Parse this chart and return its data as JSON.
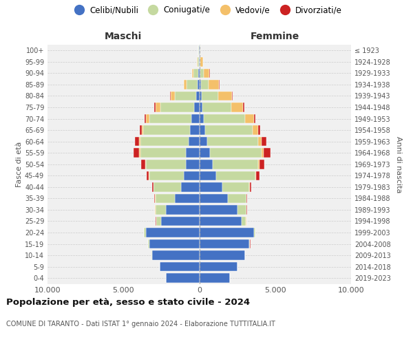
{
  "age_groups": [
    "0-4",
    "5-9",
    "10-14",
    "15-19",
    "20-24",
    "25-29",
    "30-34",
    "35-39",
    "40-44",
    "45-49",
    "50-54",
    "55-59",
    "60-64",
    "65-69",
    "70-74",
    "75-79",
    "80-84",
    "85-89",
    "90-94",
    "95-99",
    "100+"
  ],
  "birth_years": [
    "2019-2023",
    "2014-2018",
    "2009-2013",
    "2004-2008",
    "1999-2003",
    "1994-1998",
    "1989-1993",
    "1984-1988",
    "1979-1983",
    "1974-1978",
    "1969-1973",
    "1964-1968",
    "1959-1963",
    "1954-1958",
    "1949-1953",
    "1944-1948",
    "1939-1943",
    "1934-1938",
    "1929-1933",
    "1924-1928",
    "≤ 1923"
  ],
  "male": {
    "celibi": [
      2200,
      2600,
      3100,
      3300,
      3500,
      2500,
      2200,
      1600,
      1200,
      1000,
      900,
      900,
      700,
      600,
      500,
      350,
      200,
      120,
      80,
      30,
      20
    ],
    "coniugati": [
      10,
      20,
      40,
      80,
      150,
      350,
      700,
      1300,
      1800,
      2300,
      2600,
      3000,
      3200,
      3100,
      2800,
      2200,
      1400,
      700,
      300,
      80,
      30
    ],
    "vedovi": [
      5,
      5,
      5,
      5,
      5,
      5,
      10,
      15,
      20,
      30,
      40,
      60,
      80,
      100,
      200,
      350,
      300,
      200,
      100,
      30,
      10
    ],
    "divorziati": [
      5,
      5,
      5,
      5,
      10,
      20,
      30,
      50,
      80,
      150,
      300,
      350,
      250,
      120,
      100,
      80,
      30,
      15,
      10,
      10,
      5
    ]
  },
  "female": {
    "nubili": [
      2000,
      2500,
      3000,
      3300,
      3600,
      2800,
      2500,
      1900,
      1500,
      1100,
      900,
      700,
      500,
      400,
      300,
      200,
      150,
      100,
      80,
      30,
      20
    ],
    "coniugate": [
      5,
      10,
      20,
      50,
      100,
      280,
      600,
      1200,
      1800,
      2600,
      3000,
      3400,
      3400,
      3100,
      2700,
      1900,
      1100,
      500,
      200,
      60,
      30
    ],
    "vedove": [
      5,
      5,
      5,
      5,
      5,
      5,
      10,
      20,
      30,
      50,
      80,
      130,
      200,
      400,
      600,
      800,
      900,
      700,
      400,
      150,
      30
    ],
    "divorziate": [
      5,
      5,
      5,
      5,
      10,
      15,
      30,
      50,
      100,
      200,
      300,
      450,
      300,
      120,
      100,
      80,
      30,
      20,
      10,
      5,
      5
    ]
  },
  "colors": {
    "celibi_nubili": "#4472c4",
    "coniugati": "#c5d9a0",
    "vedovi": "#f4c06a",
    "divorziati": "#cc2222"
  },
  "xlim": 10000,
  "title": "Popolazione per età, sesso e stato civile - 2024",
  "subtitle": "COMUNE DI TARANTO - Dati ISTAT 1° gennaio 2024 - Elaborazione TUTTITALIA.IT",
  "ylabel_left": "Fasce di età",
  "ylabel_right": "Anni di nascita",
  "xlabel_maschi": "Maschi",
  "xlabel_femmine": "Femmine",
  "legend_labels": [
    "Celibi/Nubili",
    "Coniugati/e",
    "Vedovi/e",
    "Divorziati/e"
  ],
  "bg_color": "#f0f0f0",
  "xtick_labels": [
    "10.000",
    "5.000",
    "0",
    "5.000",
    "10.000"
  ]
}
